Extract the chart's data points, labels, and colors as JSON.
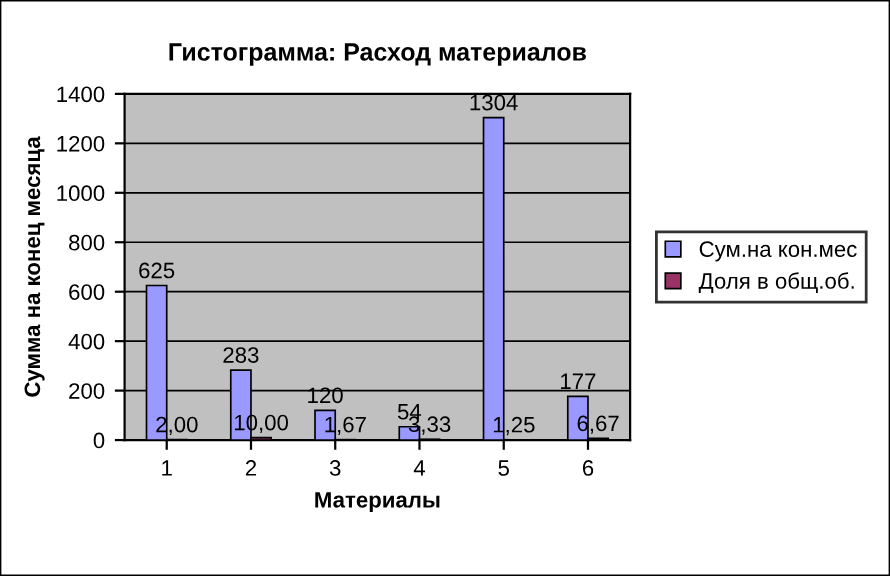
{
  "chart_data": {
    "type": "bar",
    "title": "Гистограмма: Расход материалов",
    "xlabel": "Материалы",
    "ylabel": "Сумма на конец месяца",
    "categories": [
      "1",
      "2",
      "3",
      "4",
      "5",
      "6"
    ],
    "series": [
      {
        "name": "Сум.на кон.мес",
        "color": "#9999ff",
        "values": [
          625,
          283,
          120,
          54,
          1304,
          177
        ],
        "value_labels": [
          "625",
          "283",
          "120",
          "54",
          "1304",
          "177"
        ]
      },
      {
        "name": "Доля в общ.об.",
        "color": "#993366",
        "values": [
          2.0,
          10.0,
          1.67,
          3.33,
          1.25,
          6.67
        ],
        "value_labels": [
          "2,00",
          "10,00",
          "1,67",
          "3,33",
          "1,25",
          "6,67"
        ]
      }
    ],
    "ylim": [
      0,
      1400
    ],
    "yticks": [
      0,
      200,
      400,
      600,
      800,
      1000,
      1200,
      1400
    ],
    "grid": "y",
    "legend": "right"
  }
}
